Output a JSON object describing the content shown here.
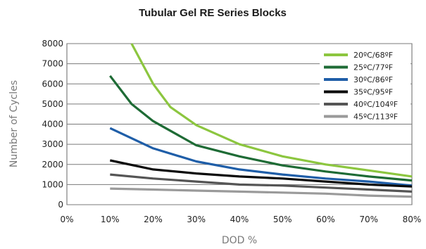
{
  "chart_data": {
    "type": "line",
    "title": "Tubular Gel RE Series Blocks",
    "xlabel": "DOD %",
    "ylabel": "Number of Cycles",
    "x_ticks": [
      "0%",
      "10%",
      "20%",
      "30%",
      "40%",
      "50%",
      "60%",
      "70%",
      "80%"
    ],
    "y_ticks": [
      "0",
      "1000",
      "2000",
      "3000",
      "4000",
      "5000",
      "6000",
      "7000",
      "8000"
    ],
    "xlim": [
      0,
      80
    ],
    "ylim": [
      0,
      8000
    ],
    "grid": "horizontal",
    "legend_position": "top-right",
    "series": [
      {
        "name": "20ºC/68ºF",
        "color": "#8cc63f",
        "x": [
          15,
          20,
          24,
          30,
          40,
          50,
          60,
          70,
          80
        ],
        "y": [
          8000,
          6000,
          4850,
          3950,
          3000,
          2400,
          2000,
          1700,
          1400
        ]
      },
      {
        "name": "25ºC/77ºF",
        "color": "#1e6b35",
        "x": [
          10,
          15,
          20,
          30,
          40,
          50,
          60,
          70,
          80
        ],
        "y": [
          6400,
          5000,
          4150,
          2950,
          2400,
          1950,
          1650,
          1400,
          1200
        ]
      },
      {
        "name": "30ºC/86ºF",
        "color": "#1f5ea8",
        "x": [
          10,
          20,
          30,
          40,
          50,
          60,
          70,
          80
        ],
        "y": [
          3800,
          2800,
          2150,
          1750,
          1500,
          1300,
          1150,
          950
        ]
      },
      {
        "name": "35ºC/95ºF",
        "color": "#0a0a0a",
        "x": [
          10,
          20,
          30,
          40,
          50,
          60,
          70,
          80
        ],
        "y": [
          2200,
          1750,
          1550,
          1400,
          1300,
          1150,
          1000,
          900
        ]
      },
      {
        "name": "40ºC/104ºF",
        "color": "#555555",
        "x": [
          10,
          20,
          30,
          40,
          50,
          60,
          70,
          80
        ],
        "y": [
          1500,
          1300,
          1150,
          1000,
          950,
          850,
          750,
          650
        ]
      },
      {
        "name": "45ºC/113ºF",
        "color": "#9a9a9a",
        "x": [
          10,
          20,
          30,
          40,
          50,
          60,
          70,
          80
        ],
        "y": [
          800,
          750,
          700,
          650,
          600,
          550,
          450,
          400
        ]
      }
    ]
  }
}
